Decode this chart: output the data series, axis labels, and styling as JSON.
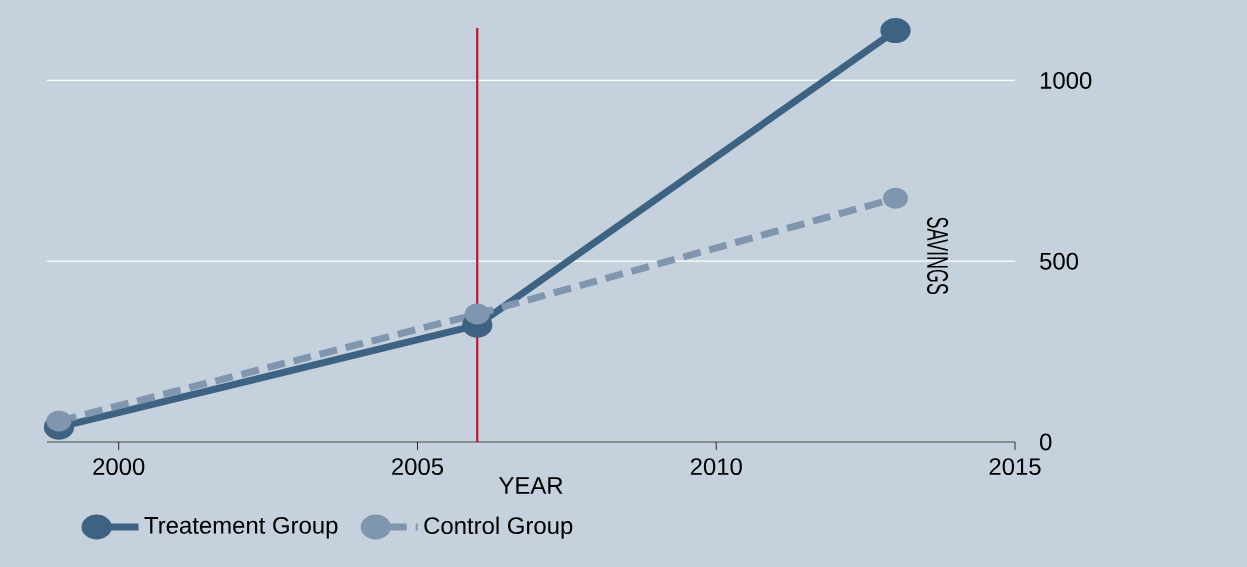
{
  "chart_data": {
    "type": "line",
    "xlabel": "YEAR",
    "ylabel": "SAVINGS",
    "x": [
      1999,
      2006,
      2013
    ],
    "series": [
      {
        "name": "Treatement Group",
        "color": "#3e6382",
        "values": [
          41,
          323,
          1138
        ],
        "line_style": "solid"
      },
      {
        "name": "Control Group",
        "color": "#7f96ae",
        "values": [
          58,
          354,
          674
        ],
        "line_style": "dashed"
      }
    ],
    "xlim": [
      1998.8,
      2015
    ],
    "ylim": [
      0,
      1145
    ],
    "xticks": [
      2000,
      2005,
      2010,
      2015
    ],
    "yticks": [
      0,
      500,
      1000
    ],
    "ref_lines": [
      {
        "axis": "x",
        "value": 2006,
        "color": "#c8102e"
      }
    ],
    "grid": "y",
    "legend": "bottom",
    "marker": "circle"
  }
}
